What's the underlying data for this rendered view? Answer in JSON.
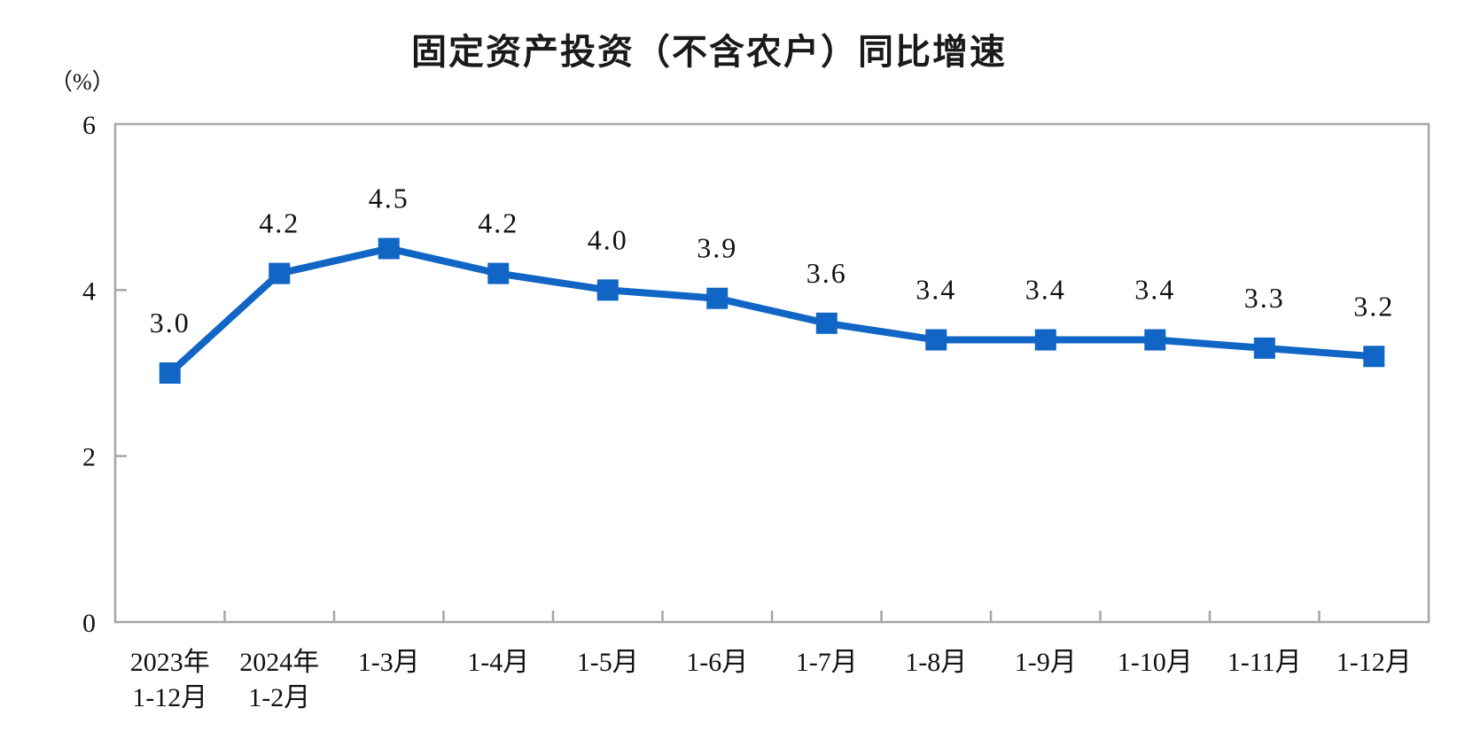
{
  "chart_data": {
    "type": "line",
    "title": "固定资产投资（不含农户）同比增速",
    "unit_label": "（%）",
    "categories": [
      {
        "line1": "2023年",
        "line2": "1-12月"
      },
      {
        "line1": "2024年",
        "line2": "1-2月"
      },
      {
        "line1": "1-3月"
      },
      {
        "line1": "1-4月"
      },
      {
        "line1": "1-5月"
      },
      {
        "line1": "1-6月"
      },
      {
        "line1": "1-7月"
      },
      {
        "line1": "1-8月"
      },
      {
        "line1": "1-9月"
      },
      {
        "line1": "1-10月"
      },
      {
        "line1": "1-11月"
      },
      {
        "line1": "1-12月"
      }
    ],
    "values": [
      3.0,
      4.2,
      4.5,
      4.2,
      4.0,
      3.9,
      3.6,
      3.4,
      3.4,
      3.4,
      3.3,
      3.2
    ],
    "xlabel": "",
    "ylabel": "（%）",
    "ylim": [
      0,
      6
    ],
    "yticks": [
      0,
      2,
      4,
      6
    ],
    "grid": false,
    "legend_position": "none",
    "line_color": "#1065C5",
    "marker": "square",
    "axis_color": "#A6A6A6"
  }
}
